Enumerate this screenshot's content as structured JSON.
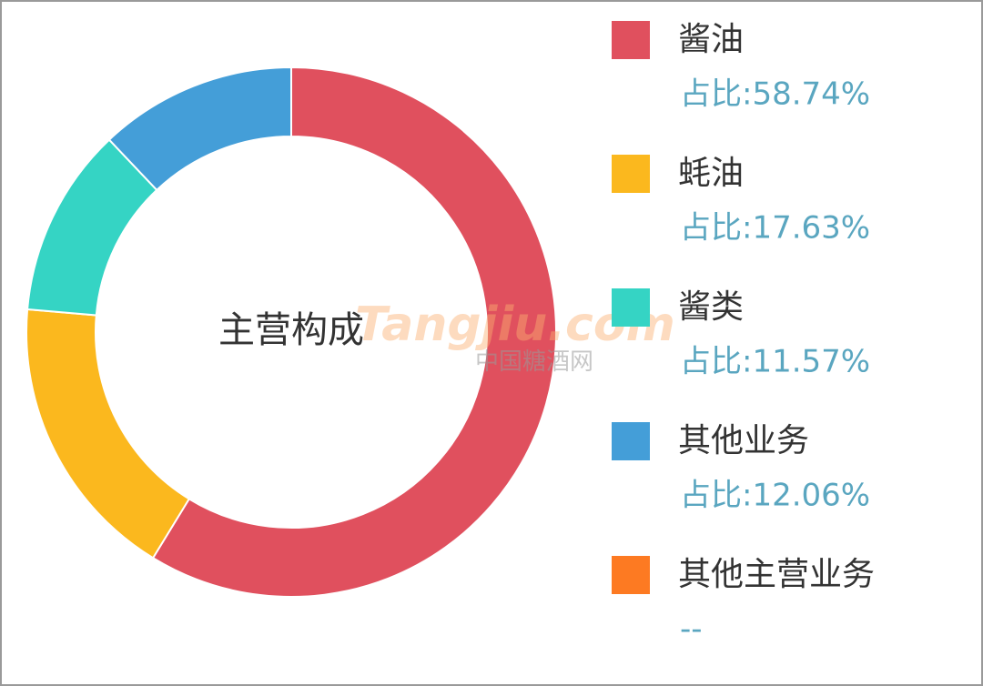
{
  "chart_data": {
    "type": "donut",
    "title": "主营构成",
    "categories": [
      "酱油",
      "蚝油",
      "酱类",
      "其他业务",
      "其他主营业务"
    ],
    "values": [
      58.74,
      17.63,
      11.57,
      12.06,
      null
    ],
    "value_labels": [
      "占比:58.74%",
      "占比:17.63%",
      "占比:11.57%",
      "占比:12.06%",
      "--"
    ],
    "colors": [
      "#e0505e",
      "#fbb81e",
      "#35d4c4",
      "#449ed8",
      "#fd7a22"
    ],
    "legend": "right",
    "watermark": [
      "Tangjiu.com",
      "中国糖酒网"
    ]
  }
}
